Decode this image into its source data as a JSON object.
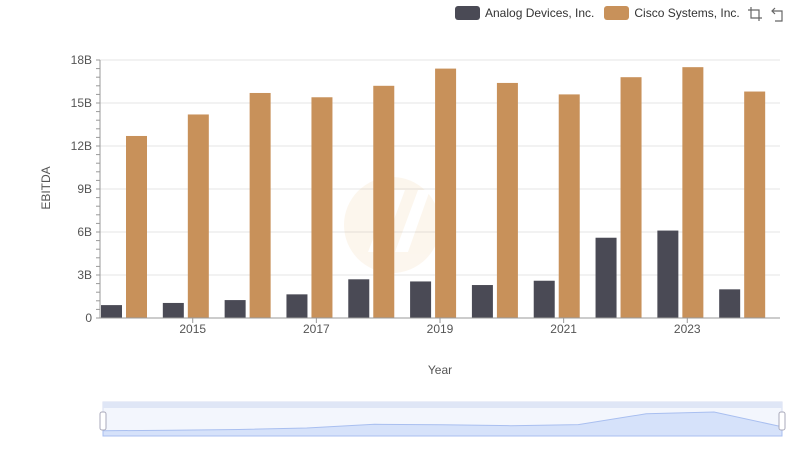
{
  "legend": {
    "items": [
      {
        "label": "Analog Devices, Inc.",
        "color": "#4a4a55"
      },
      {
        "label": "Cisco Systems, Inc.",
        "color": "#c8915a"
      }
    ]
  },
  "toolbox": {
    "icons": [
      "zoom-icon",
      "restore-icon"
    ]
  },
  "chart_data": {
    "type": "bar",
    "xlabel": "Year",
    "ylabel": "EBITDA",
    "categories": [
      "2014",
      "2015",
      "2016",
      "2017",
      "2018",
      "2019",
      "2020",
      "2021",
      "2022",
      "2023",
      "2024"
    ],
    "x_tick_labels": [
      "2015",
      "2017",
      "2019",
      "2021",
      "2023"
    ],
    "y_tick_labels": [
      "0",
      "3B",
      "6B",
      "9B",
      "12B",
      "15B",
      "18B"
    ],
    "ylim": [
      0,
      18
    ],
    "y_unit": "billions",
    "grid": true,
    "legend_position": "top-right",
    "series": [
      {
        "name": "Analog Devices, Inc.",
        "color": "#4a4a55",
        "values": [
          0.9,
          1.05,
          1.25,
          1.65,
          2.7,
          2.55,
          2.3,
          2.6,
          5.6,
          6.1,
          2.0
        ]
      },
      {
        "name": "Cisco Systems, Inc.",
        "color": "#c8915a",
        "values": [
          12.7,
          14.2,
          15.7,
          15.4,
          16.2,
          17.4,
          16.4,
          15.6,
          16.8,
          17.5,
          15.8
        ]
      }
    ],
    "data_zoom": {
      "start": 0,
      "end": 100
    }
  }
}
